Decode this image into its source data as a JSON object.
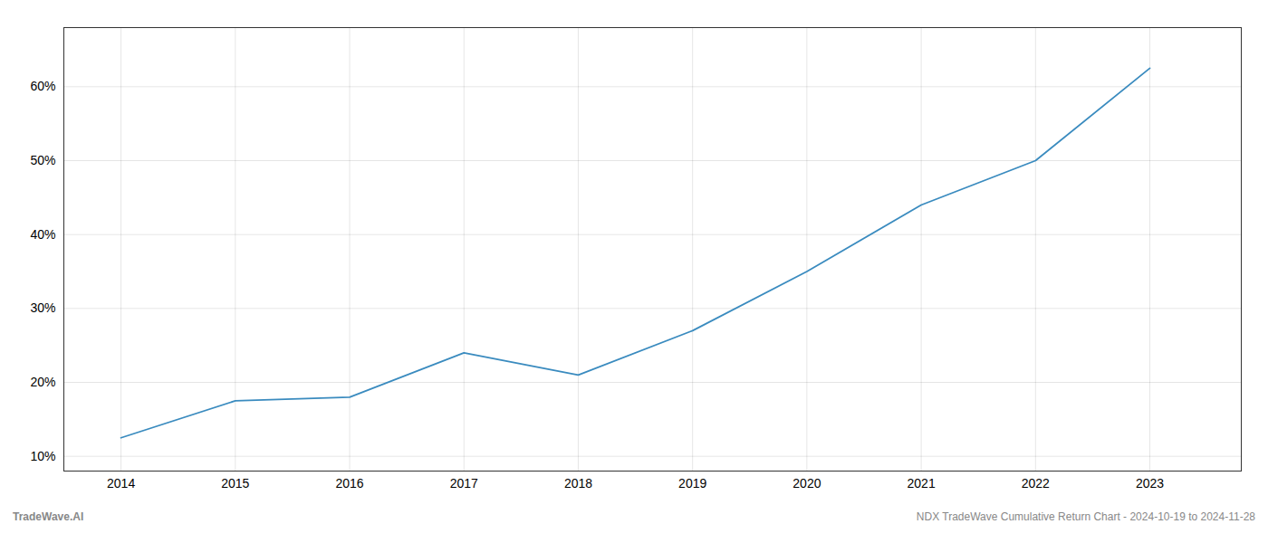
{
  "chart_data": {
    "type": "line",
    "x": [
      2014,
      2015,
      2016,
      2017,
      2018,
      2019,
      2020,
      2021,
      2022,
      2023
    ],
    "values": [
      12.5,
      17.5,
      18.0,
      24.0,
      21.0,
      27.0,
      35.0,
      44.0,
      50.0,
      62.5
    ],
    "color": "#3a8bbf",
    "xlim": [
      2013.5,
      2023.8
    ],
    "xticks": [
      2014,
      2015,
      2016,
      2017,
      2018,
      2019,
      2020,
      2021,
      2022,
      2023
    ],
    "ylim": [
      8,
      68
    ],
    "yticks": [
      {
        "value": 10,
        "label": "10%"
      },
      {
        "value": 20,
        "label": "20%"
      },
      {
        "value": 30,
        "label": "30%"
      },
      {
        "value": 40,
        "label": "40%"
      },
      {
        "value": 50,
        "label": "50%"
      },
      {
        "value": 60,
        "label": "60%"
      }
    ],
    "grid": true,
    "annotations": [
      "TradeWave.AI",
      "NDX TradeWave Cumulative Return Chart - 2024-10-19 to 2024-11-28"
    ]
  }
}
